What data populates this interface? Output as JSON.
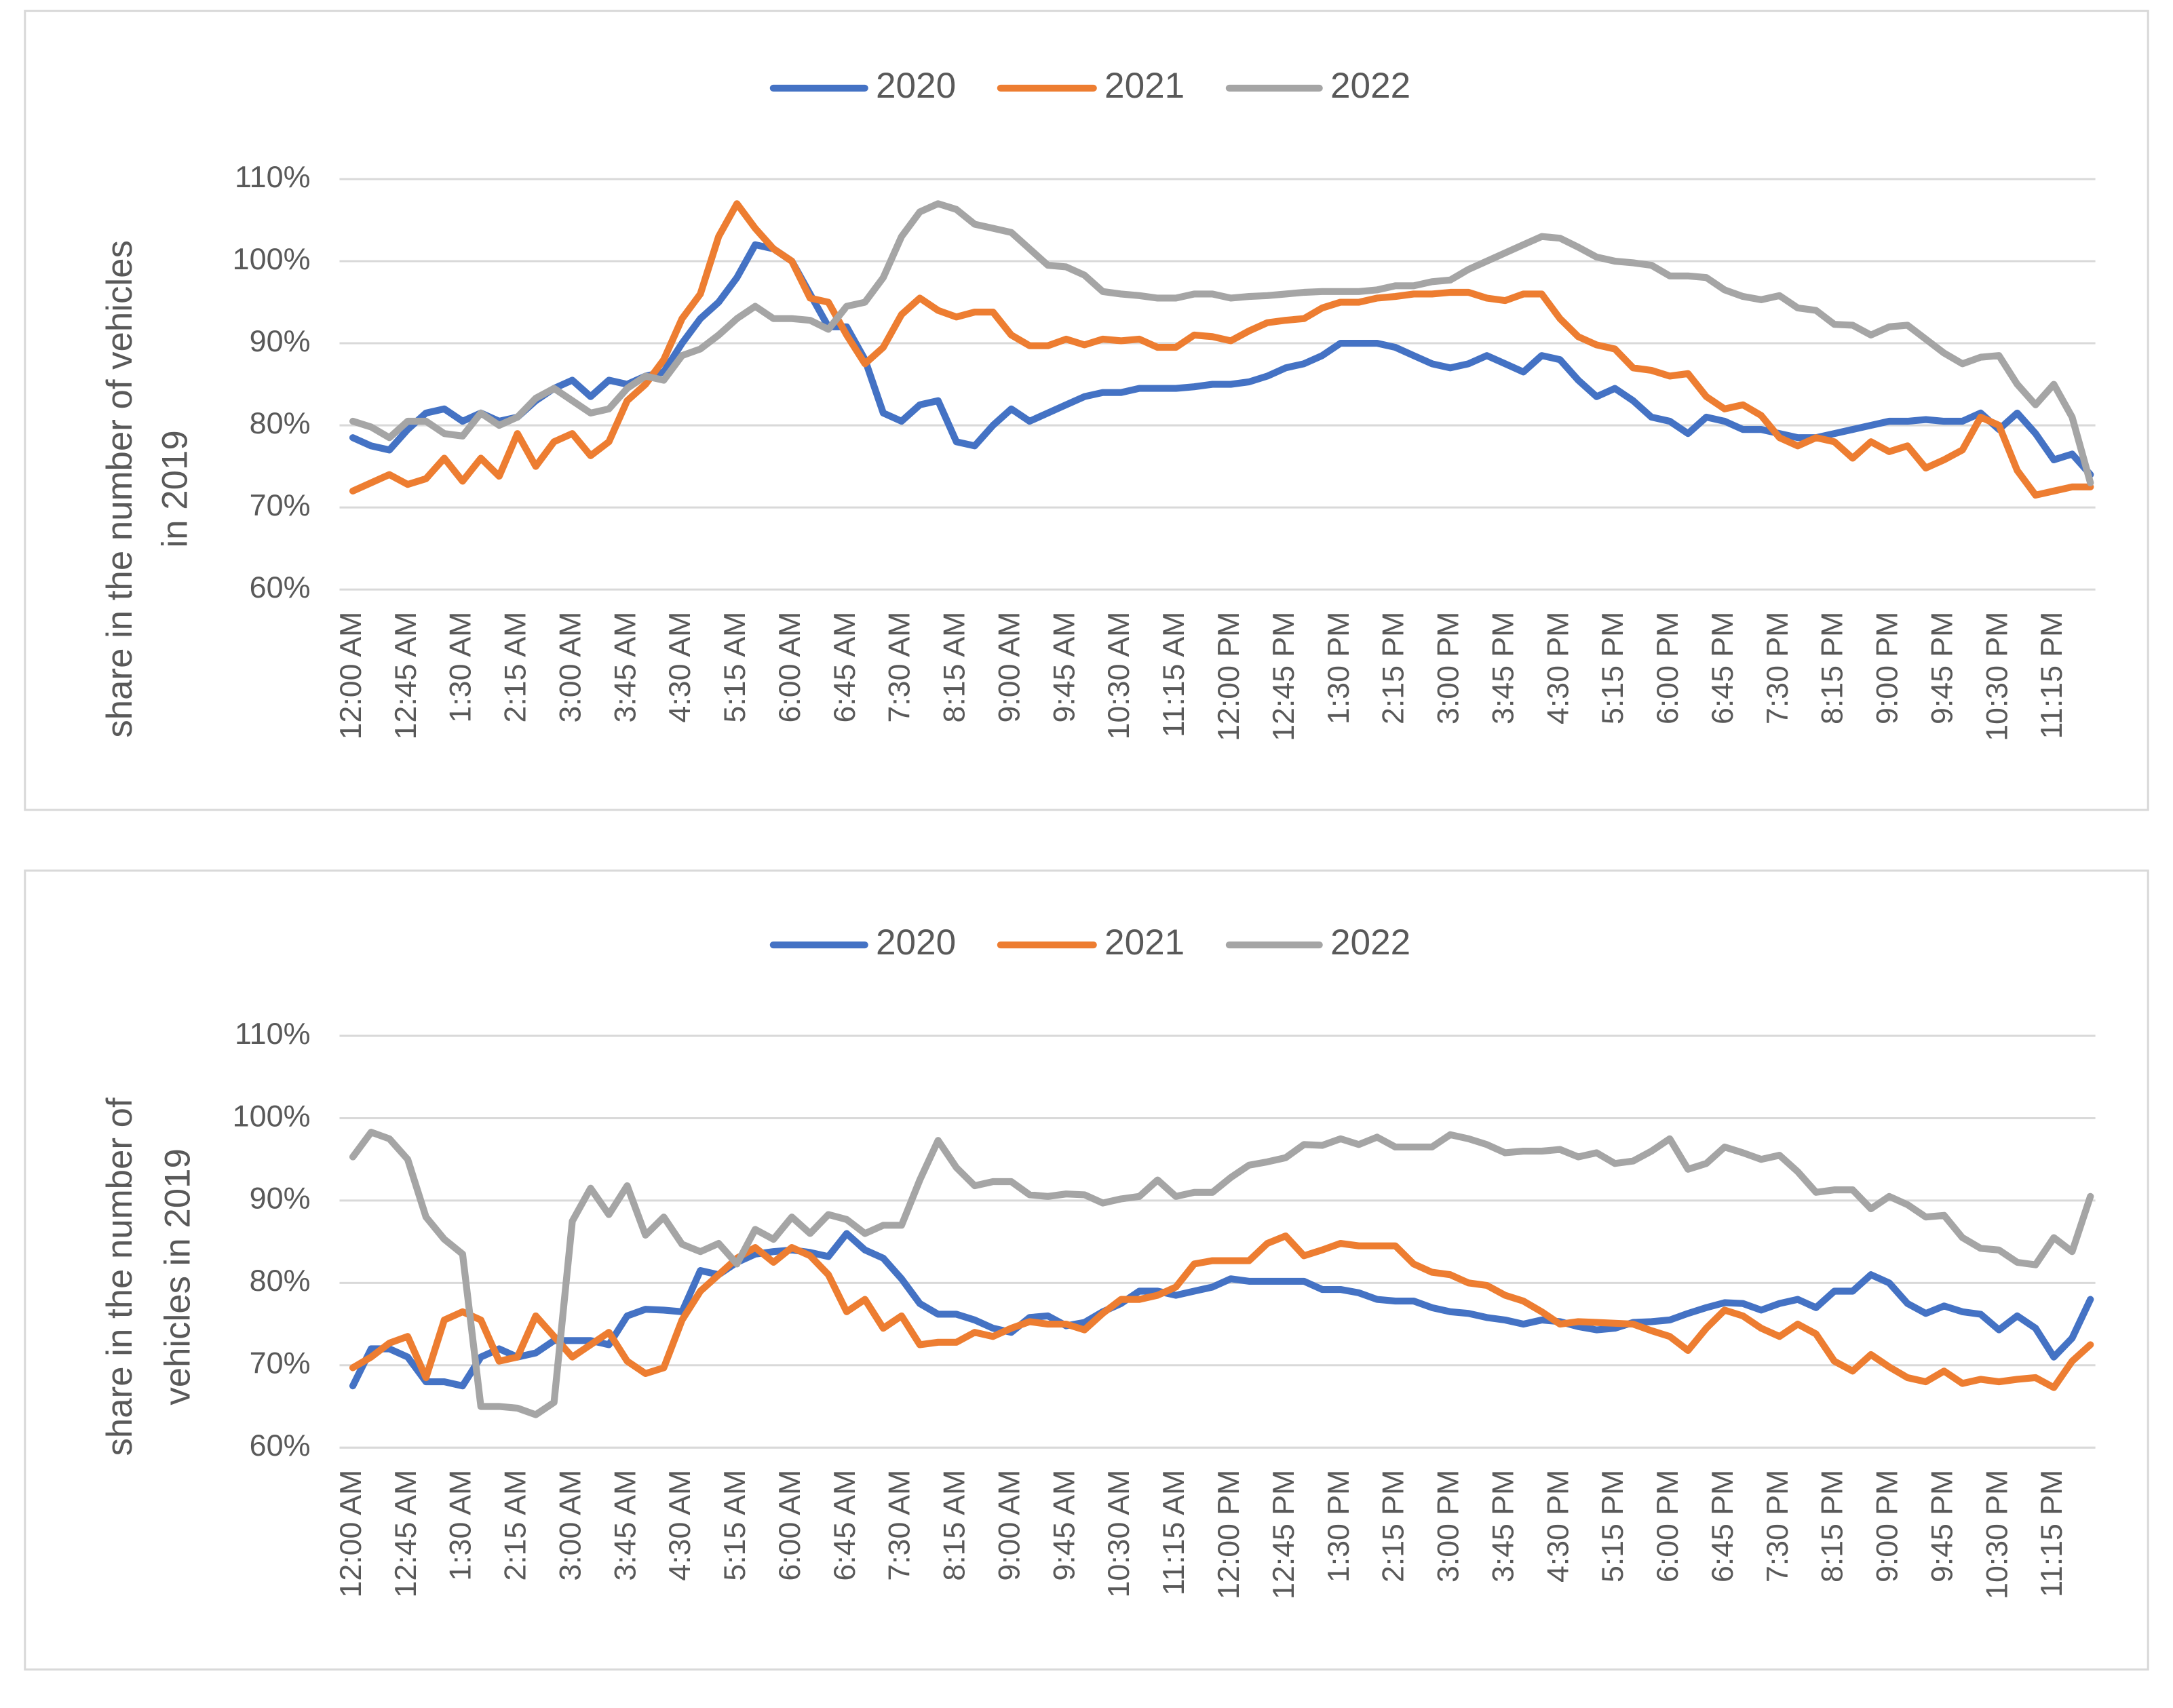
{
  "chart_data": [
    {
      "type": "line",
      "y_label": [
        "share in the number of vehicles",
        "in 2019"
      ],
      "categories": [
        "12:00 AM",
        null,
        null,
        "12:45 AM",
        null,
        null,
        "1:30 AM",
        null,
        null,
        "2:15 AM",
        null,
        null,
        "3:00 AM",
        null,
        null,
        "3:45 AM",
        null,
        null,
        "4:30 AM",
        null,
        null,
        "5:15 AM",
        null,
        null,
        "6:00 AM",
        null,
        null,
        "6:45 AM",
        null,
        null,
        "7:30 AM",
        null,
        null,
        "8:15 AM",
        null,
        null,
        "9:00 AM",
        null,
        null,
        "9:45 AM",
        null,
        null,
        "10:30 AM",
        null,
        null,
        "11:15 AM",
        null,
        null,
        "12:00 PM",
        null,
        null,
        "12:45 PM",
        null,
        null,
        "1:30 PM",
        null,
        null,
        "2:15 PM",
        null,
        null,
        "3:00 PM",
        null,
        null,
        "3:45 PM",
        null,
        null,
        "4:30 PM",
        null,
        null,
        "5:15 PM",
        null,
        null,
        "6:00 PM",
        null,
        null,
        "6:45 PM",
        null,
        null,
        "7:30 PM",
        null,
        null,
        "8:15 PM",
        null,
        null,
        "9:00 PM",
        null,
        null,
        "9:45 PM",
        null,
        null,
        "10:30 PM",
        null,
        null,
        "11:15 PM",
        null,
        null
      ],
      "ylim": [
        60,
        110
      ],
      "yticks": [
        {
          "value": 60,
          "label": "60%"
        },
        {
          "value": 70,
          "label": "70%"
        },
        {
          "value": 80,
          "label": "80%"
        },
        {
          "value": 90,
          "label": "90%"
        },
        {
          "value": 100,
          "label": "100%"
        },
        {
          "value": 110,
          "label": "110%"
        }
      ],
      "grid": true,
      "legend": "top",
      "series": [
        {
          "name": "2020",
          "color": "#4472c4",
          "values": [
            78.5,
            77.5,
            77,
            79.5,
            81.5,
            82,
            80.5,
            81.5,
            80.5,
            81,
            83,
            84.5,
            85.5,
            83.5,
            85.5,
            85,
            86,
            86.5,
            90,
            93,
            95,
            98,
            102,
            101.5,
            100,
            96,
            92,
            92,
            88,
            81.5,
            80.5,
            82.5,
            83,
            78,
            77.5,
            80,
            82,
            80.5,
            81.5,
            82.5,
            83.5,
            84,
            84,
            84.5,
            84.5,
            84.5,
            84.7,
            85,
            85,
            85.3,
            86,
            87,
            87.5,
            88.5,
            90,
            90,
            90,
            89.5,
            88.5,
            87.5,
            87,
            87.5,
            88.5,
            87.5,
            86.5,
            88.5,
            88,
            85.5,
            83.5,
            84.5,
            83,
            81,
            80.5,
            79,
            81,
            80.5,
            79.5,
            79.5,
            79,
            78.5,
            78.5,
            79,
            79.5,
            80,
            80.5,
            80.5,
            80.7,
            80.5,
            80.5,
            81.5,
            79.5,
            81.5,
            79,
            75.8,
            76.5,
            74
          ]
        },
        {
          "name": "2021",
          "color": "#ed7d31",
          "values": [
            72,
            73,
            74,
            72.8,
            73.5,
            76,
            73.2,
            76,
            73.8,
            79,
            75,
            78,
            79,
            76.3,
            78,
            83,
            85,
            88,
            93,
            96,
            103,
            107,
            104,
            101.5,
            100,
            95.5,
            95,
            91,
            87.5,
            89.5,
            93.5,
            95.5,
            94,
            93.2,
            93.8,
            93.8,
            91,
            89.7,
            89.7,
            90.5,
            89.8,
            90.5,
            90.3,
            90.5,
            89.5,
            89.5,
            91,
            90.8,
            90.3,
            91.5,
            92.5,
            92.8,
            93,
            94.3,
            95,
            95,
            95.5,
            95.7,
            96,
            96,
            96.2,
            96.2,
            95.5,
            95.2,
            96,
            96,
            93,
            90.8,
            89.8,
            89.3,
            87,
            86.7,
            86,
            86.3,
            83.5,
            82,
            82.5,
            81.2,
            78.5,
            77.5,
            78.5,
            78,
            76,
            78,
            76.8,
            77.5,
            74.8,
            75.8,
            77,
            81,
            80,
            74.5,
            71.5,
            72,
            72.5,
            72.5
          ]
        },
        {
          "name": "2022",
          "color": "#a5a5a5",
          "values": [
            80.5,
            79.8,
            78.5,
            80.5,
            80.5,
            79,
            78.7,
            81.5,
            80,
            81,
            83.3,
            84.5,
            83,
            81.5,
            82,
            84.5,
            86,
            85.5,
            88.5,
            89.3,
            91,
            93,
            94.5,
            93,
            93,
            92.8,
            91.7,
            94.5,
            95,
            98,
            103,
            106,
            107,
            106.3,
            104.5,
            104,
            103.5,
            101.5,
            99.5,
            99.3,
            98.3,
            96.3,
            96,
            95.8,
            95.5,
            95.5,
            96,
            96,
            95.5,
            95.7,
            95.8,
            96,
            96.2,
            96.3,
            96.3,
            96.3,
            96.5,
            97,
            97,
            97.5,
            97.7,
            99,
            100,
            101,
            102,
            103,
            102.8,
            101.7,
            100.5,
            100,
            99.8,
            99.5,
            98.2,
            98.2,
            98,
            96.5,
            95.7,
            95.3,
            95.8,
            94.3,
            94,
            92.3,
            92.2,
            91,
            92,
            92.2,
            90.5,
            88.8,
            87.5,
            88.3,
            88.5,
            85,
            82.5,
            85,
            81,
            73
          ]
        }
      ]
    },
    {
      "type": "line",
      "y_label": [
        "share in the number of",
        "vehicles in 2019"
      ],
      "categories": [
        "12:00 AM",
        null,
        null,
        "12:45 AM",
        null,
        null,
        "1:30 AM",
        null,
        null,
        "2:15 AM",
        null,
        null,
        "3:00 AM",
        null,
        null,
        "3:45 AM",
        null,
        null,
        "4:30 AM",
        null,
        null,
        "5:15 AM",
        null,
        null,
        "6:00 AM",
        null,
        null,
        "6:45 AM",
        null,
        null,
        "7:30 AM",
        null,
        null,
        "8:15 AM",
        null,
        null,
        "9:00 AM",
        null,
        null,
        "9:45 AM",
        null,
        null,
        "10:30 AM",
        null,
        null,
        "11:15 AM",
        null,
        null,
        "12:00 PM",
        null,
        null,
        "12:45 PM",
        null,
        null,
        "1:30 PM",
        null,
        null,
        "2:15 PM",
        null,
        null,
        "3:00 PM",
        null,
        null,
        "3:45 PM",
        null,
        null,
        "4:30 PM",
        null,
        null,
        "5:15 PM",
        null,
        null,
        "6:00 PM",
        null,
        null,
        "6:45 PM",
        null,
        null,
        "7:30 PM",
        null,
        null,
        "8:15 PM",
        null,
        null,
        "9:00 PM",
        null,
        null,
        "9:45 PM",
        null,
        null,
        "10:30 PM",
        null,
        null,
        "11:15 PM",
        null,
        null
      ],
      "ylim": [
        60,
        110
      ],
      "yticks": [
        {
          "value": 60,
          "label": "60%"
        },
        {
          "value": 70,
          "label": "70%"
        },
        {
          "value": 80,
          "label": "80%"
        },
        {
          "value": 90,
          "label": "90%"
        },
        {
          "value": 100,
          "label": "100%"
        },
        {
          "value": 110,
          "label": "110%"
        }
      ],
      "grid": true,
      "legend": "top",
      "series": [
        {
          "name": "2020",
          "color": "#4472c4",
          "values": [
            67.5,
            72,
            72,
            71,
            68,
            68,
            67.5,
            71,
            72,
            71,
            71.5,
            73,
            73,
            73,
            72.5,
            76,
            76.8,
            76.7,
            76.5,
            81.5,
            81,
            82.5,
            83.5,
            83.8,
            84,
            83.7,
            83.2,
            86,
            84,
            83,
            80.5,
            77.5,
            76.2,
            76.2,
            75.5,
            74.5,
            74,
            75.8,
            76,
            74.8,
            75.2,
            76.5,
            77.5,
            79,
            79,
            78.5,
            79,
            79.5,
            80.5,
            80.2,
            80.2,
            80.2,
            80.2,
            79.2,
            79.2,
            78.8,
            78,
            77.8,
            77.8,
            77,
            76.5,
            76.3,
            75.8,
            75.5,
            75,
            75.5,
            75.3,
            74.7,
            74.3,
            74.5,
            75.2,
            75.3,
            75.5,
            76.3,
            77,
            77.6,
            77.5,
            76.7,
            77.5,
            78,
            77,
            79,
            79,
            81,
            80,
            77.5,
            76.3,
            77.2,
            76.5,
            76.2,
            74.3,
            76,
            74.5,
            71,
            73.3,
            78
          ]
        },
        {
          "name": "2021",
          "color": "#ed7d31",
          "values": [
            69.7,
            71,
            72.7,
            73.5,
            68.5,
            75.5,
            76.5,
            75.5,
            70.5,
            71,
            76,
            73.5,
            71,
            72.5,
            74,
            70.5,
            69,
            69.7,
            75.5,
            79,
            81,
            83,
            84.3,
            82.5,
            84.3,
            83.3,
            81,
            76.5,
            78,
            74.5,
            76,
            72.5,
            72.8,
            72.8,
            74,
            73.5,
            74.5,
            75.3,
            75,
            75,
            74.3,
            76.3,
            78,
            78,
            78.5,
            79.5,
            82.3,
            82.7,
            82.7,
            82.7,
            84.8,
            85.7,
            83.3,
            84,
            84.8,
            84.5,
            84.5,
            84.5,
            82.3,
            81.3,
            81,
            80,
            79.7,
            78.5,
            77.8,
            76.5,
            75,
            75.3,
            75.2,
            75.1,
            75,
            74.2,
            73.5,
            71.8,
            74.5,
            76.7,
            76,
            74.5,
            73.5,
            75,
            73.8,
            70.5,
            69.3,
            71.3,
            69.8,
            68.5,
            68,
            69.3,
            67.8,
            68.3,
            68,
            68.3,
            68.5,
            67.3,
            70.5,
            72.5
          ]
        },
        {
          "name": "2022",
          "color": "#a5a5a5",
          "values": [
            95.3,
            98.3,
            97.5,
            95,
            88,
            85.3,
            83.5,
            65,
            65,
            64.8,
            64,
            65.5,
            87.5,
            91.5,
            88.3,
            91.8,
            85.8,
            88,
            84.7,
            83.8,
            84.8,
            82.3,
            86.5,
            85.3,
            88,
            86,
            88.3,
            87.7,
            86,
            87,
            87,
            92.5,
            97.3,
            94,
            91.8,
            92.3,
            92.3,
            90.7,
            90.5,
            90.8,
            90.7,
            89.7,
            90.2,
            90.5,
            92.5,
            90.5,
            91,
            91,
            92.8,
            94.3,
            94.7,
            95.2,
            96.8,
            96.7,
            97.5,
            96.8,
            97.7,
            96.5,
            96.5,
            96.5,
            98,
            97.5,
            96.8,
            95.8,
            96,
            96,
            96.2,
            95.3,
            95.8,
            94.5,
            94.8,
            96,
            97.5,
            93.8,
            94.5,
            96.5,
            95.8,
            95,
            95.5,
            93.5,
            91,
            91.3,
            91.3,
            89,
            90.5,
            89.5,
            88,
            88.2,
            85.5,
            84.2,
            84,
            82.5,
            82.2,
            85.5,
            83.8,
            90.5
          ]
        }
      ]
    }
  ]
}
